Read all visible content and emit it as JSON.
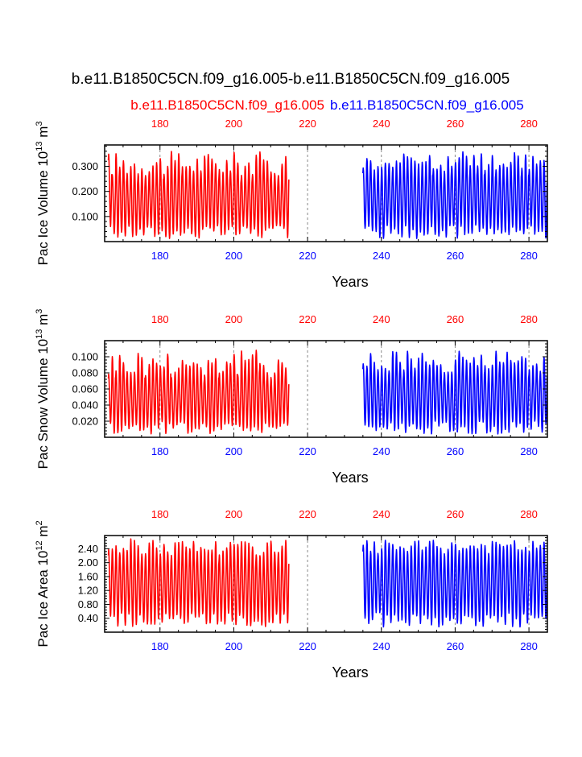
{
  "title": "b.e11.B1850C5CN.f09_g16.005-b.e11.B1850C5CN.f09_g16.005",
  "subtitle_left": "b.e11.B1850C5CN.f09_g16.005",
  "subtitle_right": "b.e11.B1850C5CN.f09_g16.005",
  "colors": {
    "case1": "#ff0000",
    "case2": "#0000ff",
    "grid": "#888888",
    "axis": "#000000"
  },
  "chart_data": [
    {
      "type": "line",
      "ylabel": "Pac Ice Volume 10",
      "ylabel_exp": "13",
      "ylabel_unit": " m",
      "ylabel_unit_exp": "3",
      "xlabel": "Years",
      "xlim": [
        165,
        285
      ],
      "ylim": [
        0.0,
        0.385
      ],
      "yticks": [
        0.1,
        0.2,
        0.3
      ],
      "ytick_labels": [
        "0.100",
        "0.200",
        "0.300"
      ],
      "xticks": [
        180,
        200,
        220,
        240,
        260,
        280
      ],
      "xtick_labels_top": [
        "180",
        "200",
        "220",
        "240",
        "260",
        "280"
      ],
      "xtick_labels_bottom": [
        "180",
        "200",
        "220",
        "240",
        "260",
        "280"
      ],
      "gridlines_x": [
        180,
        200,
        220,
        240,
        260,
        280
      ],
      "series": [
        {
          "name": "b.e11.B1850C5CN.f09_g16.005",
          "color": "red",
          "x_start": 166,
          "x_end": 215,
          "min": 0.01,
          "max_mean": 0.31,
          "max_spread": 0.05
        },
        {
          "name": "b.e11.B1850C5CN.f09_g16.005",
          "color": "blue",
          "x_start": 235,
          "x_end": 285,
          "min": 0.01,
          "max_mean": 0.32,
          "max_spread": 0.04
        }
      ]
    },
    {
      "type": "line",
      "ylabel": "Pac Snow Volume 10",
      "ylabel_exp": "13",
      "ylabel_unit": " m",
      "ylabel_unit_exp": "3",
      "xlabel": "Years",
      "xlim": [
        165,
        285
      ],
      "ylim": [
        0.0,
        0.12
      ],
      "yticks": [
        0.02,
        0.04,
        0.06,
        0.08,
        0.1
      ],
      "ytick_labels": [
        "0.020",
        "0.040",
        "0.060",
        "0.080",
        "0.100"
      ],
      "xticks": [
        180,
        200,
        220,
        240,
        260,
        280
      ],
      "xtick_labels_top": [
        "180",
        "200",
        "220",
        "240",
        "260",
        "280"
      ],
      "xtick_labels_bottom": [
        "180",
        "200",
        "220",
        "240",
        "260",
        "280"
      ],
      "gridlines_x": [
        180,
        200,
        220,
        240,
        260,
        280
      ],
      "series": [
        {
          "name": "b.e11.B1850C5CN.f09_g16.005",
          "color": "red",
          "x_start": 166,
          "x_end": 215,
          "min": 0.004,
          "max_mean": 0.092,
          "max_spread": 0.018
        },
        {
          "name": "b.e11.B1850C5CN.f09_g16.005",
          "color": "blue",
          "x_start": 235,
          "x_end": 285,
          "min": 0.004,
          "max_mean": 0.094,
          "max_spread": 0.014
        }
      ]
    },
    {
      "type": "line",
      "ylabel": "Pac Ice Area 10",
      "ylabel_exp": "12",
      "ylabel_unit": " m",
      "ylabel_unit_exp": "2",
      "xlabel": "Years",
      "xlim": [
        165,
        285
      ],
      "ylim": [
        0.0,
        2.78
      ],
      "yticks": [
        0.4,
        0.8,
        1.2,
        1.6,
        2.0,
        2.4
      ],
      "ytick_labels": [
        "0.40",
        "0.80",
        "1.20",
        "1.60",
        "2.00",
        "2.40"
      ],
      "xticks": [
        180,
        200,
        220,
        240,
        260,
        280
      ],
      "xtick_labels_top": [
        "180",
        "200",
        "220",
        "240",
        "260",
        "280"
      ],
      "xtick_labels_bottom": [
        "180",
        "200",
        "220",
        "240",
        "260",
        "280"
      ],
      "gridlines_x": [
        180,
        200,
        220,
        240,
        260,
        280
      ],
      "series": [
        {
          "name": "b.e11.B1850C5CN.f09_g16.005",
          "color": "red",
          "x_start": 166,
          "x_end": 215,
          "min": 0.15,
          "max_mean": 2.45,
          "max_spread": 0.25
        },
        {
          "name": "b.e11.B1850C5CN.f09_g16.005",
          "color": "blue",
          "x_start": 235,
          "x_end": 285,
          "min": 0.15,
          "max_mean": 2.45,
          "max_spread": 0.2
        }
      ]
    }
  ]
}
